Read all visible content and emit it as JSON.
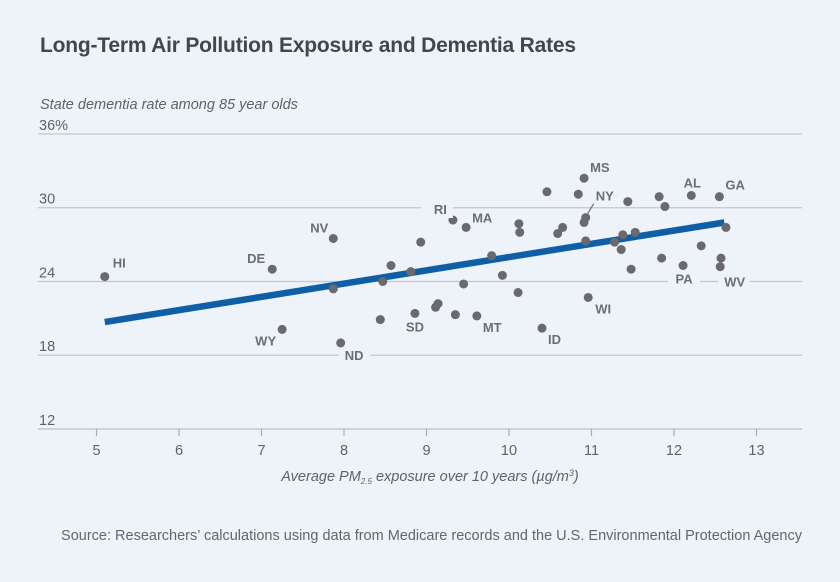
{
  "header": {
    "title": "Long-Term Air Pollution Exposure and Dementia Rates"
  },
  "footer": {
    "source": "Source: Researchers’ calculations using data from Medicare records and the U.S. Environmental Protection Agency"
  },
  "colors": {
    "background": "#eef2f9",
    "points": "#6a6a6e",
    "trendline": "#0f5fa6",
    "gridline": "#c4c7cf",
    "label": "#6b6e75"
  },
  "chart_data": {
    "type": "scatter",
    "title": "Long-Term Air Pollution Exposure and Dementia Rates",
    "ylabel": "State dementia rate among 85 year olds",
    "xlabel_parts": {
      "pre": "Average PM",
      "sub": "2.5",
      "mid": " exposure over 10 years (µg/m",
      "sup": "3",
      "post": ")"
    },
    "xlim": [
      4.5,
      13.55
    ],
    "ylim": [
      12,
      36
    ],
    "x_ticks": [
      5,
      6,
      7,
      8,
      9,
      10,
      11,
      12,
      13
    ],
    "y_ticks": [
      {
        "value": 12,
        "label": "12"
      },
      {
        "value": 18,
        "label": "18"
      },
      {
        "value": 24,
        "label": "24"
      },
      {
        "value": 30,
        "label": "30"
      },
      {
        "value": 36,
        "label": "36%"
      }
    ],
    "grid": "horizontal",
    "points": [
      {
        "x": 5.1,
        "y": 24.4,
        "label": "HI"
      },
      {
        "x": 7.13,
        "y": 25.0,
        "label": "DE"
      },
      {
        "x": 7.87,
        "y": 27.5,
        "label": "NV"
      },
      {
        "x": 7.87,
        "y": 23.4,
        "label": ""
      },
      {
        "x": 7.25,
        "y": 20.1,
        "label": "WY"
      },
      {
        "x": 7.96,
        "y": 19.0,
        "label": "ND"
      },
      {
        "x": 8.44,
        "y": 20.9,
        "label": ""
      },
      {
        "x": 8.47,
        "y": 24.0,
        "label": ""
      },
      {
        "x": 8.57,
        "y": 25.3,
        "label": ""
      },
      {
        "x": 8.81,
        "y": 24.8,
        "label": ""
      },
      {
        "x": 8.86,
        "y": 21.4,
        "label": "SD"
      },
      {
        "x": 8.93,
        "y": 27.2,
        "label": ""
      },
      {
        "x": 9.11,
        "y": 21.9,
        "label": ""
      },
      {
        "x": 9.14,
        "y": 22.2,
        "label": ""
      },
      {
        "x": 9.32,
        "y": 29.0,
        "label": "RI"
      },
      {
        "x": 9.35,
        "y": 21.3,
        "label": ""
      },
      {
        "x": 9.48,
        "y": 28.4,
        "label": "MA"
      },
      {
        "x": 9.45,
        "y": 23.8,
        "label": ""
      },
      {
        "x": 9.61,
        "y": 21.2,
        "label": "MT"
      },
      {
        "x": 9.79,
        "y": 26.1,
        "label": ""
      },
      {
        "x": 9.92,
        "y": 24.5,
        "label": ""
      },
      {
        "x": 10.11,
        "y": 23.1,
        "label": ""
      },
      {
        "x": 10.12,
        "y": 28.7,
        "label": ""
      },
      {
        "x": 10.13,
        "y": 28.0,
        "label": ""
      },
      {
        "x": 10.4,
        "y": 20.2,
        "label": "ID"
      },
      {
        "x": 10.46,
        "y": 31.3,
        "label": ""
      },
      {
        "x": 10.59,
        "y": 27.9,
        "label": ""
      },
      {
        "x": 10.65,
        "y": 28.4,
        "label": ""
      },
      {
        "x": 10.84,
        "y": 31.1,
        "label": ""
      },
      {
        "x": 10.91,
        "y": 32.4,
        "label": "MS"
      },
      {
        "x": 10.93,
        "y": 29.2,
        "label": "NY"
      },
      {
        "x": 10.91,
        "y": 28.8,
        "label": ""
      },
      {
        "x": 10.93,
        "y": 27.3,
        "label": ""
      },
      {
        "x": 10.96,
        "y": 22.7,
        "label": "WI"
      },
      {
        "x": 11.28,
        "y": 27.2,
        "label": ""
      },
      {
        "x": 11.36,
        "y": 26.6,
        "label": ""
      },
      {
        "x": 11.38,
        "y": 27.8,
        "label": ""
      },
      {
        "x": 11.44,
        "y": 30.5,
        "label": ""
      },
      {
        "x": 11.48,
        "y": 25.0,
        "label": ""
      },
      {
        "x": 11.53,
        "y": 28.0,
        "label": ""
      },
      {
        "x": 11.82,
        "y": 30.9,
        "label": ""
      },
      {
        "x": 11.85,
        "y": 25.9,
        "label": ""
      },
      {
        "x": 11.89,
        "y": 30.1,
        "label": ""
      },
      {
        "x": 12.11,
        "y": 25.3,
        "label": "PA"
      },
      {
        "x": 12.21,
        "y": 31.0,
        "label": "AL"
      },
      {
        "x": 12.33,
        "y": 26.9,
        "label": ""
      },
      {
        "x": 12.55,
        "y": 30.9,
        "label": "GA"
      },
      {
        "x": 12.57,
        "y": 25.9,
        "label": ""
      },
      {
        "x": 12.56,
        "y": 25.2,
        "label": "WV"
      },
      {
        "x": 12.63,
        "y": 28.4,
        "label": ""
      }
    ],
    "trendline": {
      "x": [
        5.1,
        12.61
      ],
      "y": [
        20.7,
        28.8
      ]
    }
  }
}
